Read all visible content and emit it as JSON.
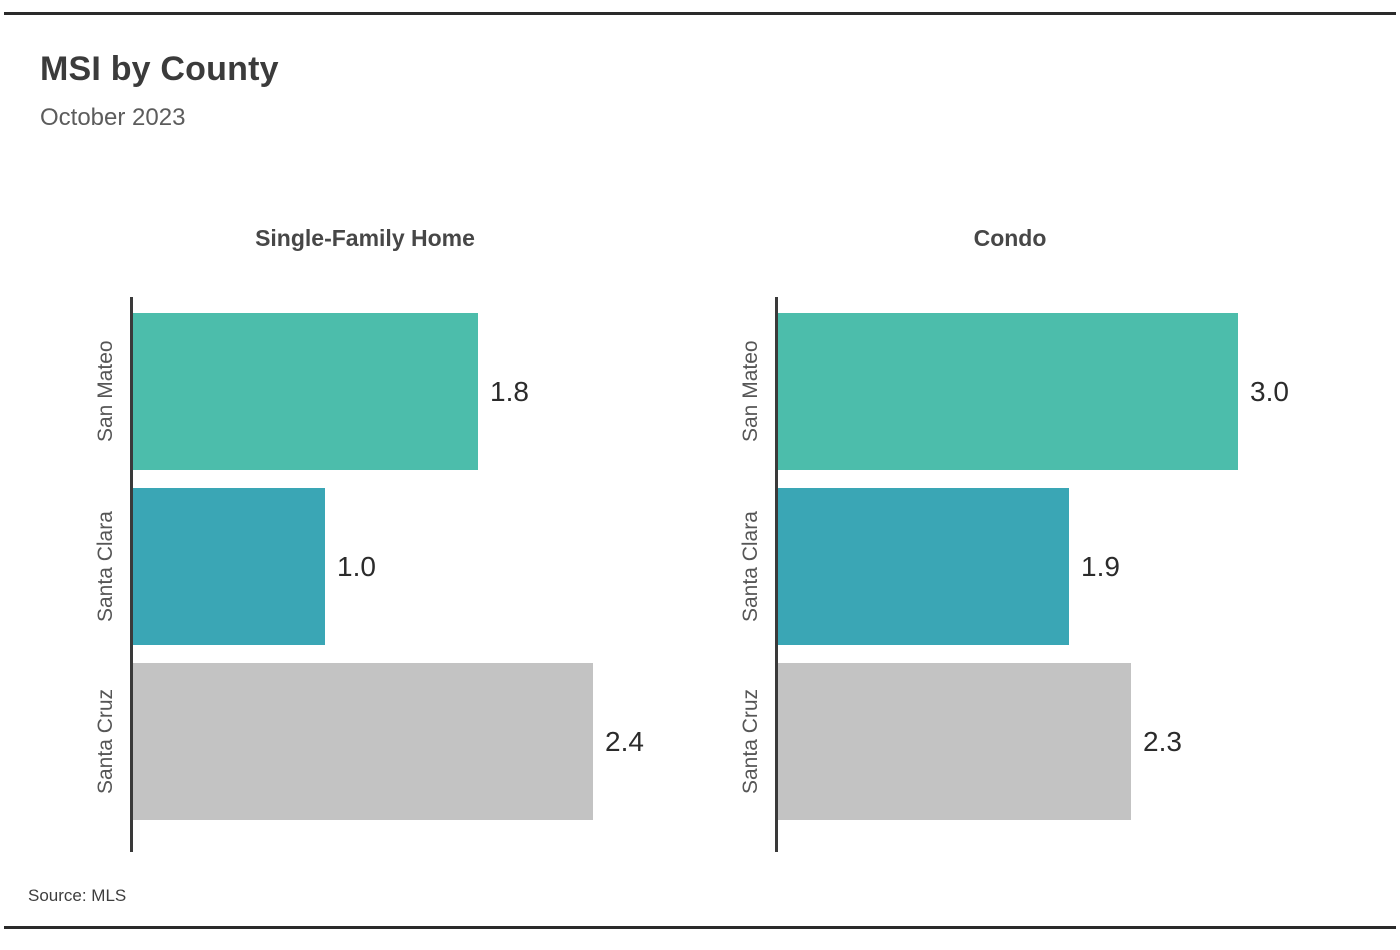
{
  "page": {
    "title": "MSI by County",
    "subtitle": "October 2023",
    "source": "Source: MLS",
    "background": "#ffffff",
    "border_color": "#2a2a2a",
    "axis_color": "#3a3a3a"
  },
  "chart_data": [
    {
      "type": "bar",
      "orientation": "horizontal",
      "title": "Single-Family Home",
      "categories": [
        "San Mateo",
        "Santa Clara",
        "Santa Cruz"
      ],
      "values": [
        1.8,
        1.0,
        2.4
      ],
      "value_labels": [
        "1.8",
        "1.0",
        "2.4"
      ],
      "bar_colors": [
        "#4CBDAB",
        "#3AA6B5",
        "#C3C3C3"
      ],
      "xlim": [
        0,
        2.4
      ],
      "grid": false,
      "legend": "none",
      "value_label_position": "end-of-bar"
    },
    {
      "type": "bar",
      "orientation": "horizontal",
      "title": "Condo",
      "categories": [
        "San Mateo",
        "Santa Clara",
        "Santa Cruz"
      ],
      "values": [
        3.0,
        1.9,
        2.3
      ],
      "value_labels": [
        "3.0",
        "1.9",
        "2.3"
      ],
      "bar_colors": [
        "#4CBDAB",
        "#3AA6B5",
        "#C3C3C3"
      ],
      "xlim": [
        0,
        3.0
      ],
      "grid": false,
      "legend": "none",
      "value_label_position": "end-of-bar"
    }
  ]
}
